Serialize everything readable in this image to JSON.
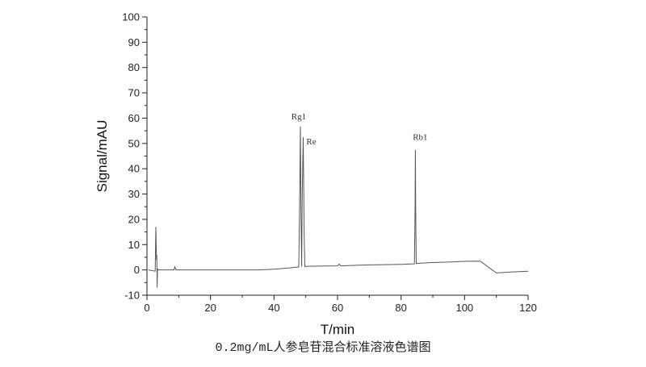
{
  "chart_data": {
    "type": "line",
    "title": "",
    "xlabel": "T/min",
    "ylabel": "Signal/mAU",
    "xlim": [
      0,
      120
    ],
    "ylim": [
      -10,
      100
    ],
    "xticks": [
      0,
      20,
      40,
      60,
      80,
      100,
      120
    ],
    "yticks": [
      -10,
      0,
      10,
      20,
      30,
      40,
      50,
      60,
      70,
      80,
      90,
      100
    ],
    "grid": false,
    "line_color": "#555555",
    "series": [
      {
        "x": [
          0.5,
          2.6,
          2.8,
          2.9,
          3.0,
          3.1,
          3.2,
          3.3,
          3.4,
          3.6,
          4,
          6,
          8.5,
          8.8,
          9.1,
          10,
          20,
          30,
          35,
          40,
          45,
          47.8,
          48.1,
          48.3,
          48.5,
          48.7,
          48.9,
          49.2,
          49.5,
          49.7,
          50,
          55,
          60,
          60.5,
          61,
          65,
          70,
          75,
          80,
          84.2,
          84.4,
          84.5,
          84.6,
          84.8,
          85,
          88,
          90,
          95,
          100,
          103,
          105,
          110,
          115,
          120
        ],
        "y": [
          0,
          -0.5,
          17,
          10,
          4,
          6,
          -7,
          0,
          0.3,
          0,
          0,
          0,
          0,
          1.2,
          0,
          0,
          0,
          0,
          0,
          0.3,
          0.8,
          1.2,
          30,
          56.7,
          20,
          1.3,
          30,
          52.5,
          14,
          1.3,
          1.4,
          1.5,
          1.6,
          2.3,
          1.6,
          1.8,
          2.0,
          2.1,
          2.2,
          2.4,
          23,
          47.5,
          23,
          2.5,
          2.6,
          2.8,
          2.9,
          3.1,
          3.4,
          3.5,
          3.4,
          -1.2,
          -0.8,
          -0.5
        ]
      }
    ],
    "annotations": [
      {
        "text": "Rg1",
        "x": 48.3,
        "y": 56.7
      },
      {
        "text": "Re",
        "x": 49.2,
        "y": 52.5
      },
      {
        "text": "Rb1",
        "x": 84.5,
        "y": 47.5
      }
    ]
  },
  "caption": "0.2mg/mL人参皂苷混合标准溶液色谱图"
}
